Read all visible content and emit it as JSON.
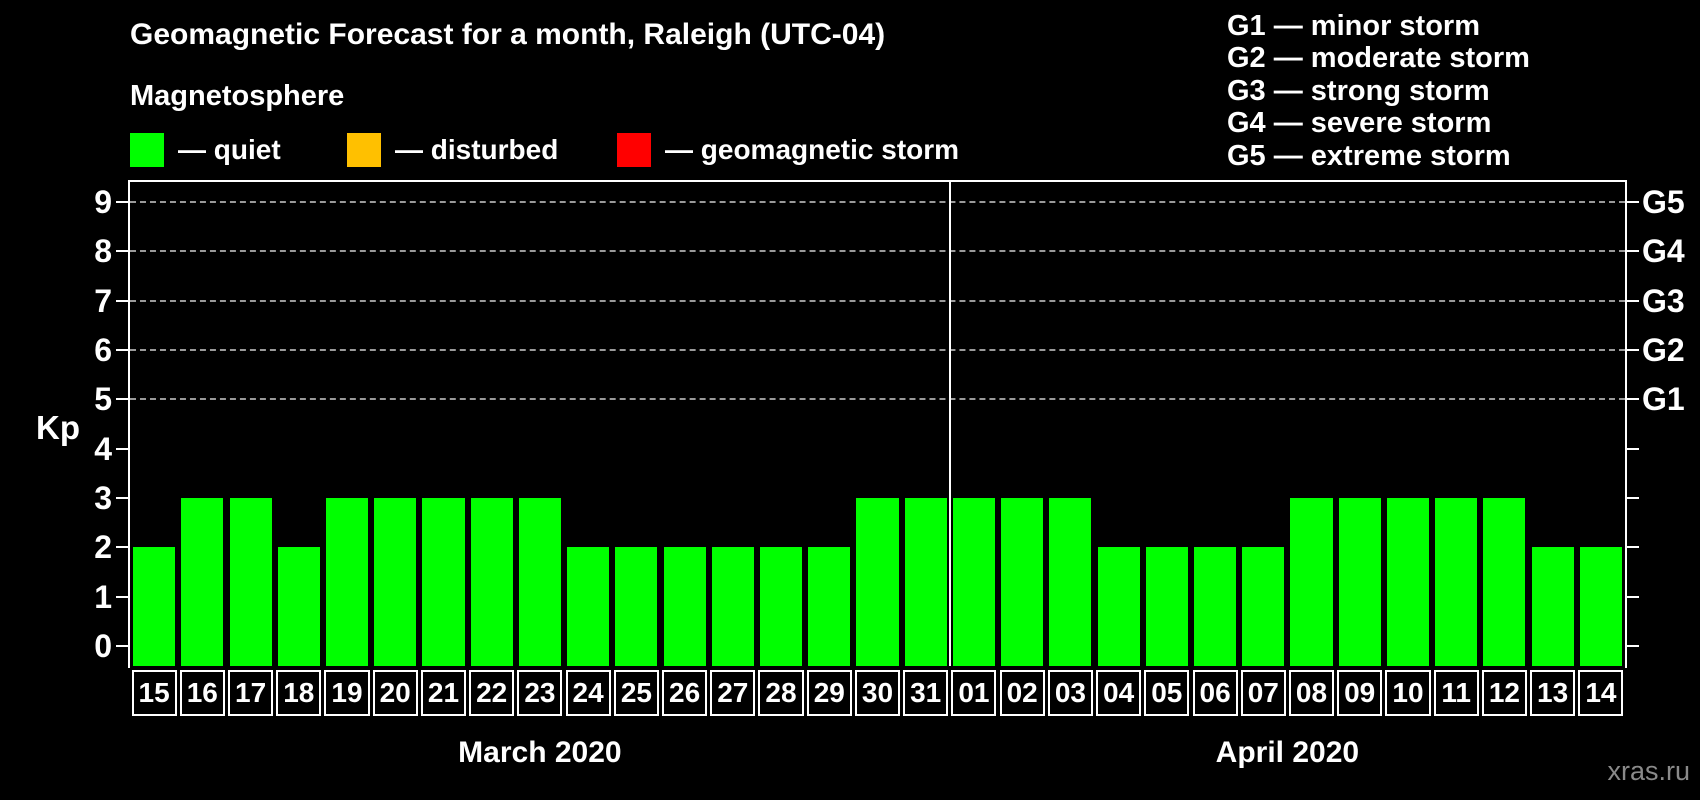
{
  "header": {
    "title": "Geomagnetic Forecast for a month, Raleigh (UTC-04)",
    "subtitle": "Magnetosphere"
  },
  "legend": {
    "items": [
      {
        "label": "— quiet",
        "color": "#00ff00"
      },
      {
        "label": "— disturbed",
        "color": "#ffc000"
      },
      {
        "label": "— geomagnetic storm",
        "color": "#ff0000"
      }
    ]
  },
  "storm_scale_legend": {
    "items": [
      "G1 — minor storm",
      "G2 — moderate storm",
      "G3 — strong storm",
      "G4 — severe storm",
      "G5 — extreme storm"
    ]
  },
  "watermark": "xras.ru",
  "chart_data": {
    "type": "bar",
    "title": "Geomagnetic Forecast for a month, Raleigh (UTC-04)",
    "ylabel": "Kp",
    "ylim": [
      0,
      9.4
    ],
    "y_ticks": [
      0,
      1,
      2,
      3,
      4,
      5,
      6,
      7,
      8,
      9
    ],
    "grid_levels_kp": [
      5,
      6,
      7,
      8,
      9
    ],
    "right_axis": [
      {
        "kp": 5,
        "label": "G1"
      },
      {
        "kp": 6,
        "label": "G2"
      },
      {
        "kp": 7,
        "label": "G3"
      },
      {
        "kp": 8,
        "label": "G4"
      },
      {
        "kp": 9,
        "label": "G5"
      }
    ],
    "bar_color": "#00ff00",
    "legend_position": "top",
    "grid": "dashed-horizontal-at-storm-levels",
    "months": [
      {
        "label": "March 2020",
        "days": [
          "15",
          "16",
          "17",
          "18",
          "19",
          "20",
          "21",
          "22",
          "23",
          "24",
          "25",
          "26",
          "27",
          "28",
          "29",
          "30",
          "31"
        ],
        "values": [
          2,
          3,
          3,
          2,
          3,
          3,
          3,
          3,
          3,
          2,
          2,
          2,
          2,
          2,
          2,
          3,
          3
        ]
      },
      {
        "label": "April 2020",
        "days": [
          "01",
          "02",
          "03",
          "04",
          "05",
          "06",
          "07",
          "08",
          "09",
          "10",
          "11",
          "12",
          "13",
          "14"
        ],
        "values": [
          3,
          3,
          3,
          2,
          2,
          2,
          2,
          3,
          3,
          3,
          3,
          3,
          2,
          2
        ]
      }
    ]
  }
}
